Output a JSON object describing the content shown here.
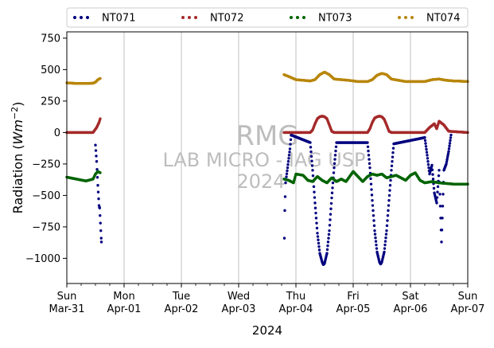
{
  "chart_data": {
    "type": "scatter",
    "xlabel": "2024",
    "ylabel": "Radiation",
    "ylabel_unit": "Wm",
    "ylabel_exp": "−2",
    "ylim": [
      -1200,
      800
    ],
    "yticks": [
      750,
      500,
      250,
      0,
      -250,
      -500,
      -750,
      -1000
    ],
    "ytick_labels": [
      "750",
      "500",
      "250",
      "0",
      "−250",
      "−500",
      "−750",
      "−1000"
    ],
    "xlim": [
      "2024-03-31",
      "2024-04-07"
    ],
    "x_major_ticks": [
      {
        "date": "2024-03-31",
        "day": "Sun",
        "date_label": "Mar-31"
      },
      {
        "date": "2024-04-01",
        "day": "Mon",
        "date_label": "Apr-01"
      },
      {
        "date": "2024-04-02",
        "day": "Tue",
        "date_label": "Apr-02"
      },
      {
        "date": "2024-04-03",
        "day": "Wed",
        "date_label": "Apr-03"
      },
      {
        "date": "2024-04-04",
        "day": "Thu",
        "date_label": "Apr-04"
      },
      {
        "date": "2024-04-05",
        "day": "Fri",
        "date_label": "Apr-05"
      },
      {
        "date": "2024-04-06",
        "day": "Sat",
        "date_label": "Apr-06"
      },
      {
        "date": "2024-04-07",
        "day": "Sun",
        "date_label": "Apr-07"
      }
    ],
    "x_minor_ticks_hours": [
      6,
      12,
      18
    ],
    "grid": "vertical major",
    "legend": {
      "placement": "top",
      "columns": 4
    },
    "watermark": [
      "RMG",
      "LAB MICRO - IAG USP",
      "2024"
    ],
    "series": [
      {
        "name": "NT071",
        "color": "#00007f",
        "points": [
          [
            "2024-03-31 12:00",
            -100
          ],
          [
            "2024-03-31 12:30",
            -230
          ],
          [
            "2024-03-31 13:00",
            -420
          ],
          [
            "2024-03-31 13:30",
            -580
          ],
          [
            "2024-03-31 13:45",
            -600
          ],
          [
            "2024-03-31 14:30",
            -870
          ],
          [
            "2024-04-03 19:10",
            -840
          ],
          [
            "2024-04-03 19:20",
            -620
          ],
          [
            "2024-04-03 19:40",
            -400
          ],
          [
            "2024-04-03 20:30",
            -280
          ],
          [
            "2024-04-03 21:30",
            -130
          ],
          [
            "2024-04-03 22:00",
            -20
          ],
          [
            "2024-04-04 06:00",
            -80
          ],
          [
            "2024-04-04 07:00",
            -300
          ],
          [
            "2024-04-04 08:00",
            -560
          ],
          [
            "2024-04-04 09:00",
            -800
          ],
          [
            "2024-04-04 10:00",
            -960
          ],
          [
            "2024-04-04 11:00",
            -1030
          ],
          [
            "2024-04-04 11:30",
            -1050
          ],
          [
            "2024-04-04 12:00",
            -1040
          ],
          [
            "2024-04-04 13:00",
            -960
          ],
          [
            "2024-04-04 14:00",
            -780
          ],
          [
            "2024-04-04 15:00",
            -520
          ],
          [
            "2024-04-04 16:00",
            -280
          ],
          [
            "2024-04-04 17:00",
            -80
          ],
          [
            "2024-04-05 06:00",
            -80
          ],
          [
            "2024-04-05 07:00",
            -280
          ],
          [
            "2024-04-05 08:00",
            -540
          ],
          [
            "2024-04-05 09:00",
            -780
          ],
          [
            "2024-04-05 10:00",
            -950
          ],
          [
            "2024-04-05 11:00",
            -1030
          ],
          [
            "2024-04-05 11:30",
            -1045
          ],
          [
            "2024-04-05 12:00",
            -1030
          ],
          [
            "2024-04-05 13:00",
            -950
          ],
          [
            "2024-04-05 14:00",
            -780
          ],
          [
            "2024-04-05 15:00",
            -540
          ],
          [
            "2024-04-05 16:00",
            -300
          ],
          [
            "2024-04-05 17:00",
            -90
          ],
          [
            "2024-04-06 06:00",
            -40
          ],
          [
            "2024-04-06 07:00",
            -180
          ],
          [
            "2024-04-06 08:00",
            -330
          ],
          [
            "2024-04-06 09:00",
            -260
          ],
          [
            "2024-04-06 10:00",
            -480
          ],
          [
            "2024-04-06 11:00",
            -560
          ],
          [
            "2024-04-06 12:00",
            -300
          ],
          [
            "2024-04-06 13:00",
            -870
          ],
          [
            "2024-04-06 14:00",
            -300
          ],
          [
            "2024-04-06 15:00",
            -250
          ],
          [
            "2024-04-06 16:00",
            -150
          ],
          [
            "2024-04-06 17:00",
            -20
          ]
        ]
      },
      {
        "name": "NT072",
        "color": "#a52a2a",
        "points": [
          [
            "2024-03-31 00:00",
            0
          ],
          [
            "2024-03-31 11:00",
            0
          ],
          [
            "2024-03-31 12:30",
            40
          ],
          [
            "2024-03-31 13:30",
            80
          ],
          [
            "2024-03-31 14:00",
            110
          ],
          [
            "2024-04-03 19:00",
            0
          ],
          [
            "2024-04-04 06:00",
            0
          ],
          [
            "2024-04-04 07:00",
            20
          ],
          [
            "2024-04-04 08:00",
            70
          ],
          [
            "2024-04-04 09:00",
            110
          ],
          [
            "2024-04-04 10:00",
            125
          ],
          [
            "2024-04-04 11:00",
            130
          ],
          [
            "2024-04-04 12:00",
            125
          ],
          [
            "2024-04-04 13:00",
            110
          ],
          [
            "2024-04-04 14:00",
            60
          ],
          [
            "2024-04-04 15:00",
            10
          ],
          [
            "2024-04-04 16:00",
            0
          ],
          [
            "2024-04-05 06:00",
            0
          ],
          [
            "2024-04-05 07:00",
            30
          ],
          [
            "2024-04-05 08:00",
            80
          ],
          [
            "2024-04-05 09:00",
            115
          ],
          [
            "2024-04-05 10:00",
            125
          ],
          [
            "2024-04-05 11:00",
            130
          ],
          [
            "2024-04-05 12:00",
            125
          ],
          [
            "2024-04-05 13:00",
            105
          ],
          [
            "2024-04-05 14:00",
            60
          ],
          [
            "2024-04-05 15:00",
            10
          ],
          [
            "2024-04-05 16:00",
            0
          ],
          [
            "2024-04-06 06:00",
            0
          ],
          [
            "2024-04-06 08:00",
            40
          ],
          [
            "2024-04-06 10:00",
            70
          ],
          [
            "2024-04-06 11:00",
            30
          ],
          [
            "2024-04-06 12:00",
            90
          ],
          [
            "2024-04-06 14:00",
            60
          ],
          [
            "2024-04-06 16:00",
            10
          ],
          [
            "2024-04-07 00:00",
            0
          ]
        ]
      },
      {
        "name": "NT073",
        "color": "#006400",
        "points": [
          [
            "2024-03-31 00:00",
            -355
          ],
          [
            "2024-03-31 04:00",
            -370
          ],
          [
            "2024-03-31 08:00",
            -385
          ],
          [
            "2024-03-31 11:00",
            -370
          ],
          [
            "2024-03-31 12:00",
            -330
          ],
          [
            "2024-03-31 13:00",
            -310
          ],
          [
            "2024-03-31 14:00",
            -320
          ],
          [
            "2024-04-03 19:00",
            -370
          ],
          [
            "2024-04-03 21:00",
            -380
          ],
          [
            "2024-04-03 23:00",
            -400
          ],
          [
            "2024-04-04 00:00",
            -330
          ],
          [
            "2024-04-04 03:00",
            -340
          ],
          [
            "2024-04-04 05:00",
            -380
          ],
          [
            "2024-04-04 07:00",
            -390
          ],
          [
            "2024-04-04 09:00",
            -350
          ],
          [
            "2024-04-04 11:00",
            -380
          ],
          [
            "2024-04-04 13:00",
            -400
          ],
          [
            "2024-04-04 15:00",
            -360
          ],
          [
            "2024-04-04 17:00",
            -390
          ],
          [
            "2024-04-04 19:00",
            -370
          ],
          [
            "2024-04-04 21:00",
            -390
          ],
          [
            "2024-04-05 00:00",
            -310
          ],
          [
            "2024-04-05 02:00",
            -350
          ],
          [
            "2024-04-05 04:00",
            -390
          ],
          [
            "2024-04-05 06:00",
            -350
          ],
          [
            "2024-04-05 08:00",
            -330
          ],
          [
            "2024-04-05 10:00",
            -340
          ],
          [
            "2024-04-05 12:00",
            -330
          ],
          [
            "2024-04-05 14:00",
            -360
          ],
          [
            "2024-04-05 16:00",
            -350
          ],
          [
            "2024-04-05 18:00",
            -340
          ],
          [
            "2024-04-05 20:00",
            -360
          ],
          [
            "2024-04-05 22:00",
            -380
          ],
          [
            "2024-04-06 00:00",
            -340
          ],
          [
            "2024-04-06 02:00",
            -320
          ],
          [
            "2024-04-06 04:00",
            -380
          ],
          [
            "2024-04-06 06:00",
            -400
          ],
          [
            "2024-04-06 09:00",
            -390
          ],
          [
            "2024-04-06 12:00",
            -400
          ],
          [
            "2024-04-06 15:00",
            -405
          ],
          [
            "2024-04-06 18:00",
            -410
          ],
          [
            "2024-04-06 21:00",
            -410
          ],
          [
            "2024-04-07 00:00",
            -410
          ]
        ]
      },
      {
        "name": "NT074",
        "color": "#b8860b",
        "points": [
          [
            "2024-03-31 00:00",
            395
          ],
          [
            "2024-03-31 04:00",
            390
          ],
          [
            "2024-03-31 08:00",
            390
          ],
          [
            "2024-03-31 11:00",
            392
          ],
          [
            "2024-03-31 12:00",
            400
          ],
          [
            "2024-03-31 13:00",
            420
          ],
          [
            "2024-03-31 14:00",
            430
          ],
          [
            "2024-04-03 19:00",
            460
          ],
          [
            "2024-04-03 21:00",
            445
          ],
          [
            "2024-04-04 00:00",
            420
          ],
          [
            "2024-04-04 03:00",
            415
          ],
          [
            "2024-04-04 06:00",
            410
          ],
          [
            "2024-04-04 08:00",
            420
          ],
          [
            "2024-04-04 10:00",
            460
          ],
          [
            "2024-04-04 12:00",
            480
          ],
          [
            "2024-04-04 14:00",
            460
          ],
          [
            "2024-04-04 16:00",
            425
          ],
          [
            "2024-04-04 19:00",
            420
          ],
          [
            "2024-04-04 22:00",
            415
          ],
          [
            "2024-04-05 02:00",
            405
          ],
          [
            "2024-04-05 06:00",
            405
          ],
          [
            "2024-04-05 08:00",
            420
          ],
          [
            "2024-04-05 10:00",
            455
          ],
          [
            "2024-04-05 12:00",
            470
          ],
          [
            "2024-04-05 14:00",
            460
          ],
          [
            "2024-04-05 16:00",
            425
          ],
          [
            "2024-04-05 19:00",
            415
          ],
          [
            "2024-04-05 22:00",
            405
          ],
          [
            "2024-04-06 02:00",
            405
          ],
          [
            "2024-04-06 06:00",
            405
          ],
          [
            "2024-04-06 09:00",
            420
          ],
          [
            "2024-04-06 12:00",
            425
          ],
          [
            "2024-04-06 15:00",
            415
          ],
          [
            "2024-04-06 18:00",
            410
          ],
          [
            "2024-04-06 21:00",
            408
          ],
          [
            "2024-04-07 00:00",
            405
          ]
        ]
      }
    ]
  }
}
